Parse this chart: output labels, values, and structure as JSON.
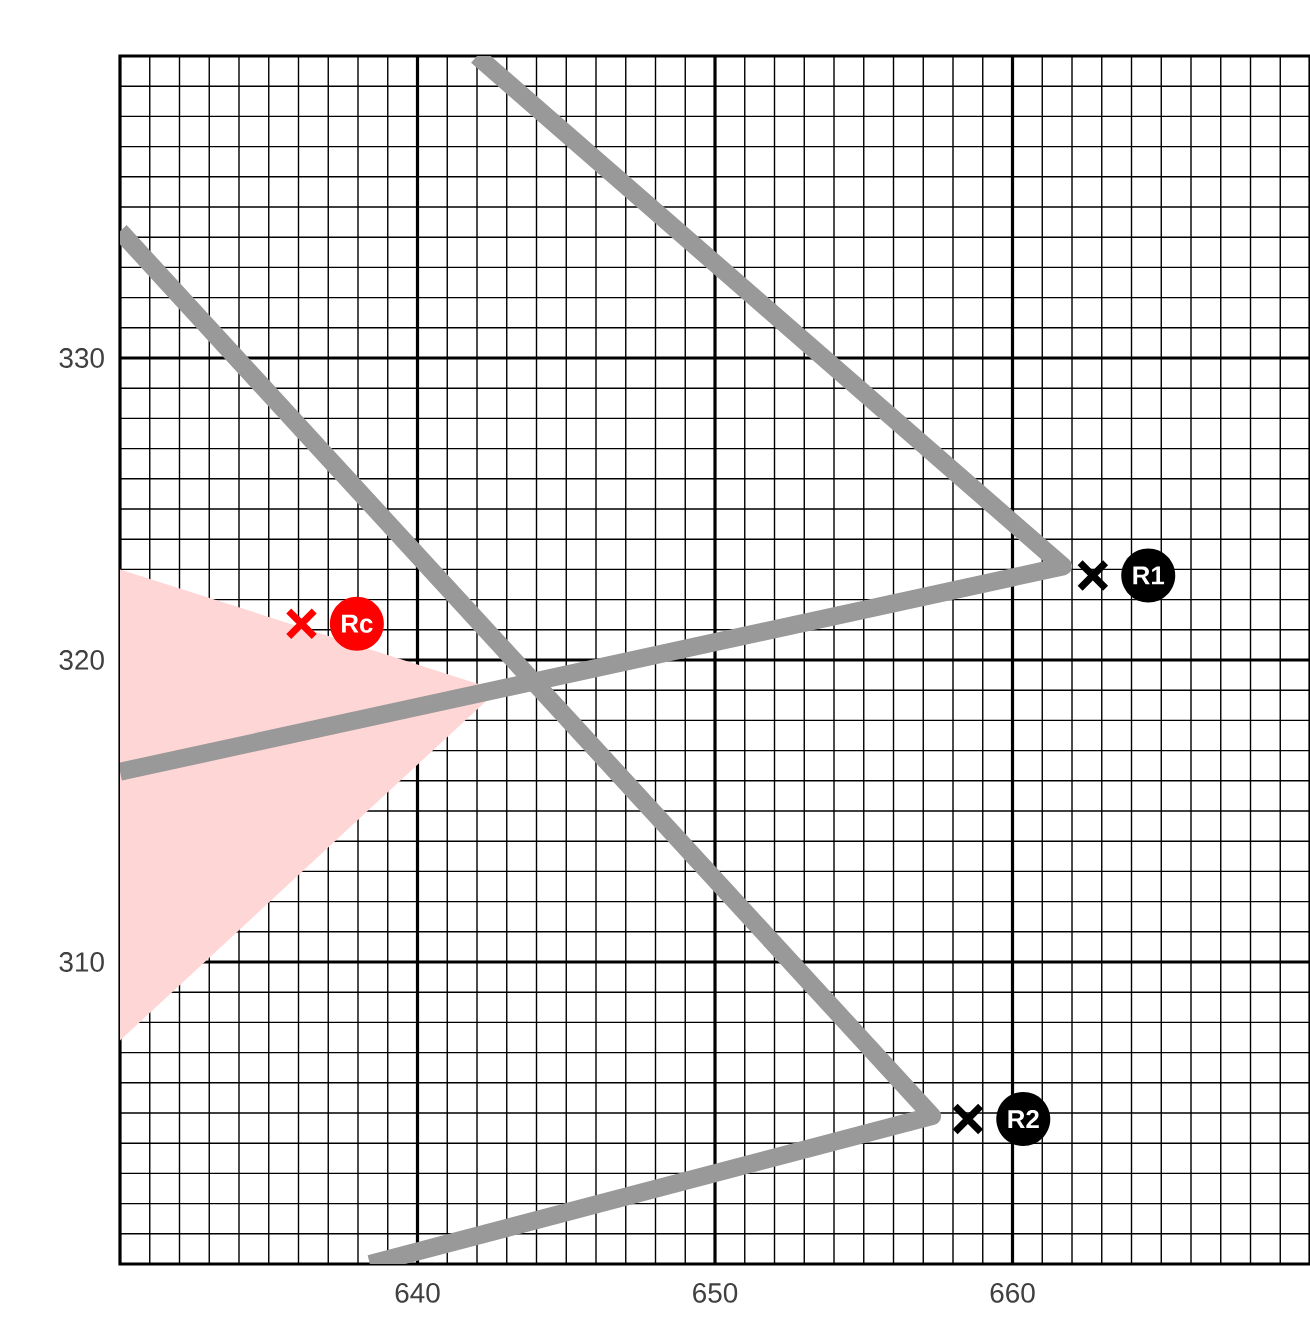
{
  "chart_data": {
    "type": "line",
    "xlim": [
      630,
      670
    ],
    "ylim": [
      300,
      340
    ],
    "xticks": [
      640,
      650,
      660
    ],
    "yticks": [
      310,
      320,
      330
    ],
    "grid": true,
    "series": [
      {
        "type": "area",
        "color": "#ffd6d6",
        "x": [
          630,
          642.7,
          630
        ],
        "values": [
          323.0,
          319.0,
          307.4
        ]
      },
      {
        "color": "#999999",
        "x": [
          642.0,
          661.7,
          630
        ],
        "values": [
          340,
          323.1,
          316.3
        ]
      },
      {
        "color": "#999999",
        "x": [
          630,
          657.3,
          638.4
        ],
        "values": [
          334.2,
          304.9,
          300
        ]
      },
      {
        "type": "scatter",
        "name": "R1",
        "color": "#000000",
        "marker": "cross",
        "x": [
          662.7
        ],
        "values": [
          322.8
        ]
      },
      {
        "type": "scatter",
        "name": "R2",
        "color": "#000000",
        "marker": "cross",
        "x": [
          658.5
        ],
        "values": [
          304.8
        ]
      },
      {
        "type": "scatter",
        "name": "Rc",
        "color": "#ff0000",
        "marker": "cross",
        "x": [
          636.1
        ],
        "values": [
          321.2
        ]
      }
    ]
  }
}
